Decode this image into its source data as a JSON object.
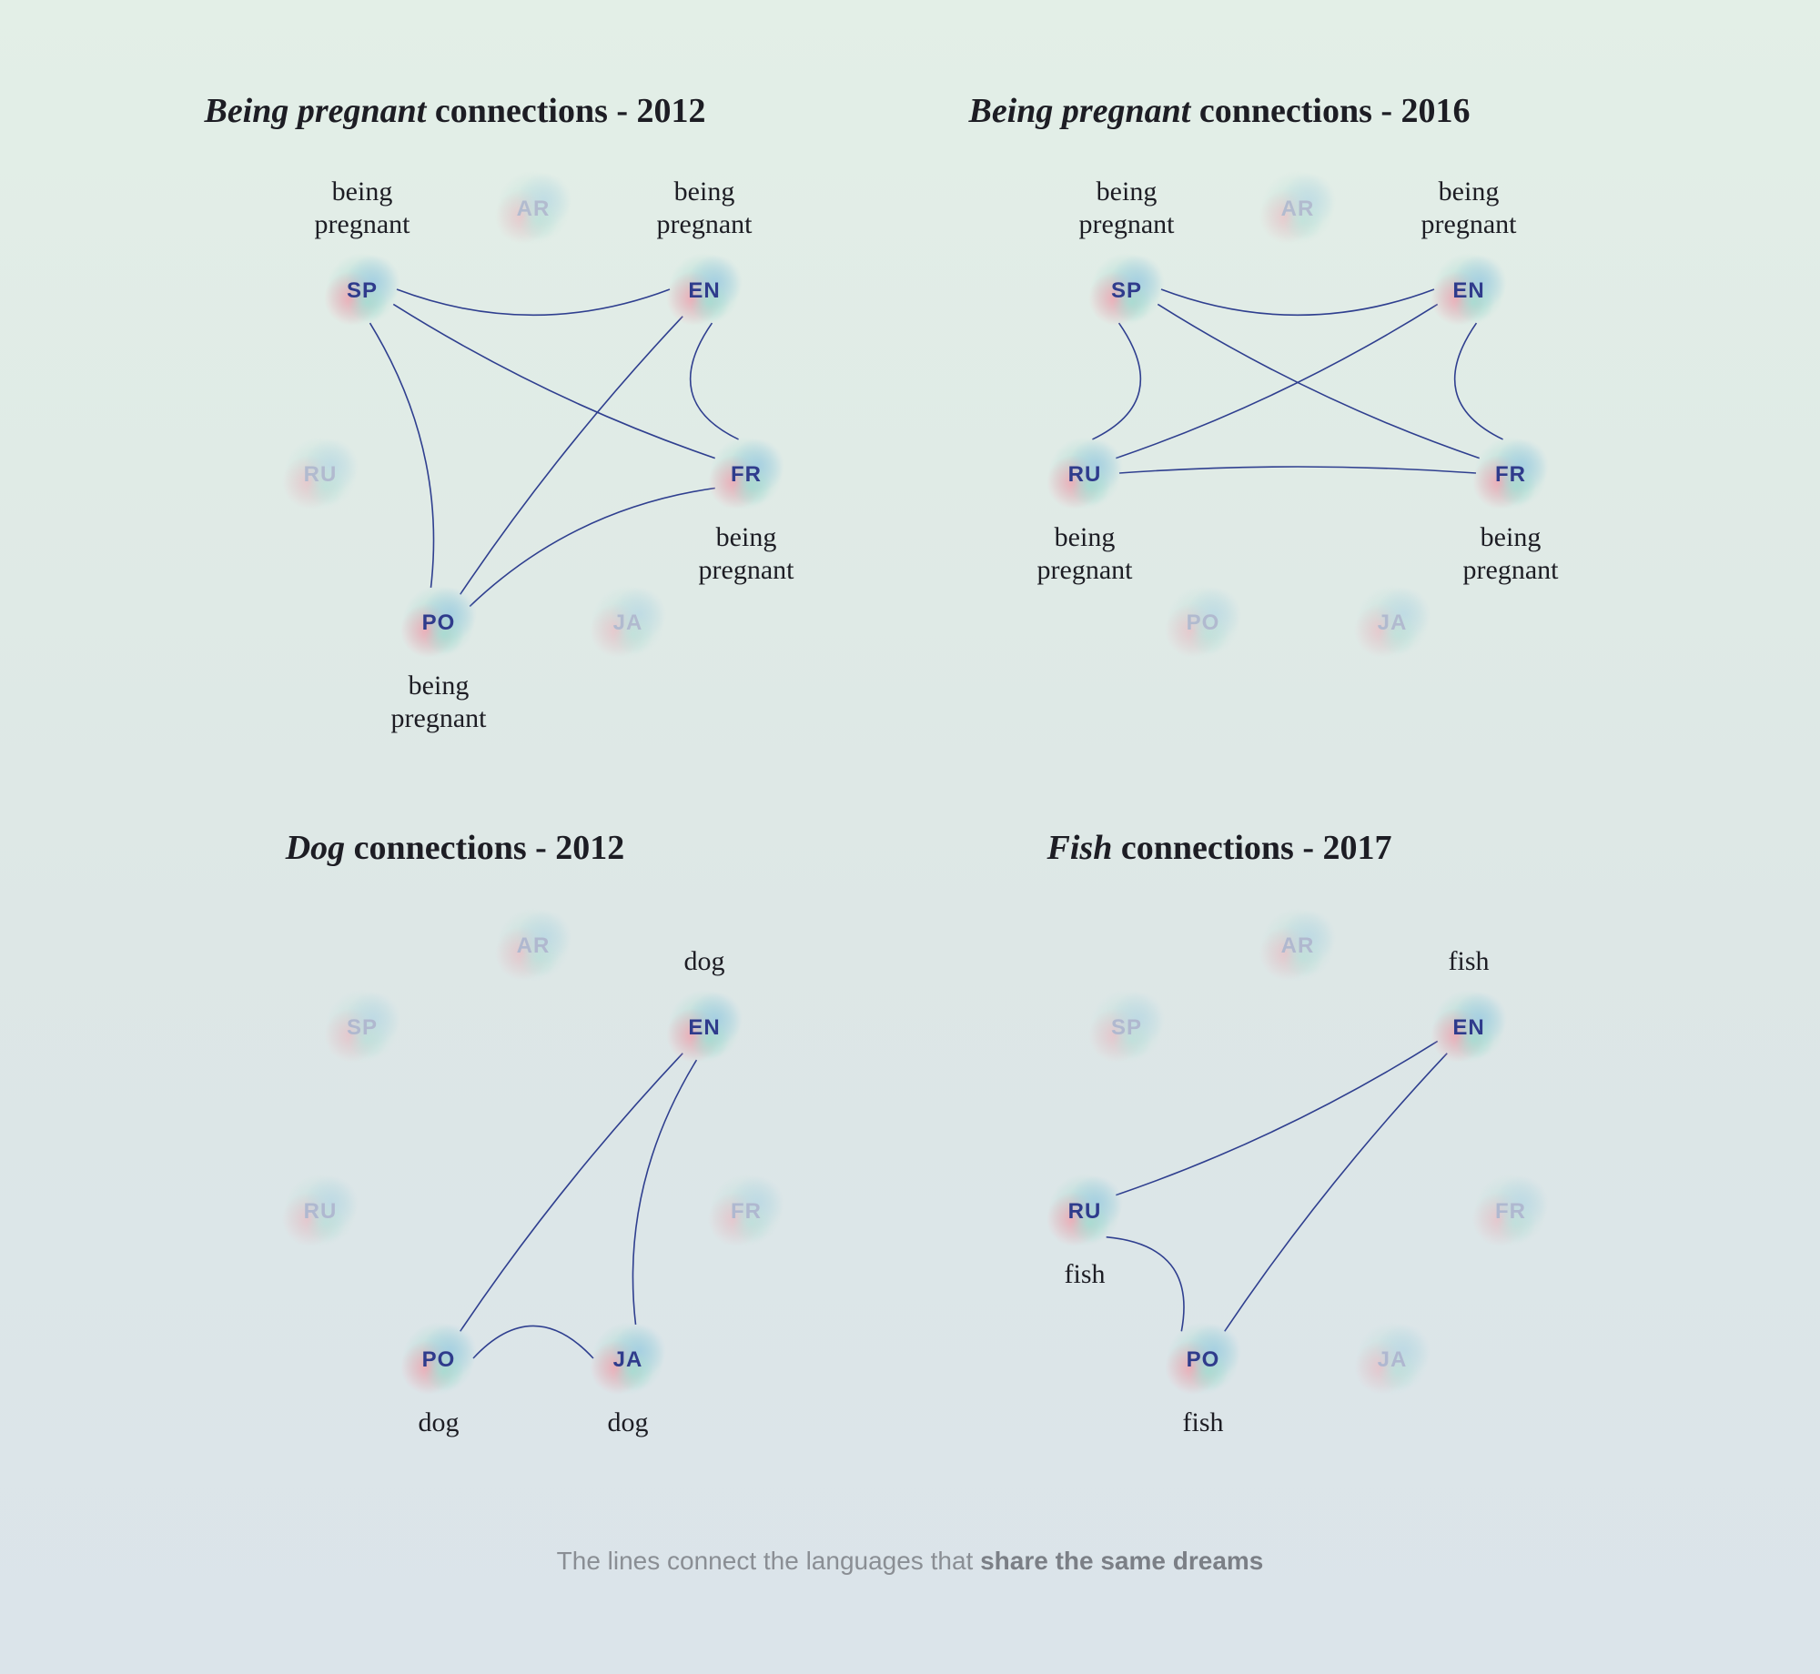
{
  "colors": {
    "edge": "#2f3f8f",
    "label_active": "#2f3b8c",
    "label_inactive": "#8c93bd",
    "blob_red": "#f1a9b5",
    "blob_blue": "#a6cfe2",
    "blob_teal": "#a9dcd2"
  },
  "panels": [
    {
      "title": {
        "em": "Being pregnant",
        "rest": " connections - 2012"
      },
      "nodes": [
        {
          "id": "SP",
          "active": true,
          "text": [
            "being",
            "pregnant"
          ],
          "text_pos": "above"
        },
        {
          "id": "AR",
          "active": false
        },
        {
          "id": "EN",
          "active": true,
          "text": [
            "being",
            "pregnant"
          ],
          "text_pos": "above"
        },
        {
          "id": "RU",
          "active": false
        },
        {
          "id": "FR",
          "active": true,
          "text": [
            "being",
            "pregnant"
          ],
          "text_pos": "below"
        },
        {
          "id": "PO",
          "active": true,
          "text": [
            "being",
            "pregnant"
          ],
          "text_pos": "below"
        },
        {
          "id": "JA",
          "active": false
        }
      ],
      "edges": [
        [
          "SP",
          "EN"
        ],
        [
          "SP",
          "FR"
        ],
        [
          "SP",
          "PO"
        ],
        [
          "EN",
          "FR"
        ],
        [
          "EN",
          "PO"
        ],
        [
          "FR",
          "PO"
        ]
      ]
    },
    {
      "title": {
        "em": "Being pregnant",
        "rest": " connections - 2016"
      },
      "nodes": [
        {
          "id": "SP",
          "active": true,
          "text": [
            "being",
            "pregnant"
          ],
          "text_pos": "above"
        },
        {
          "id": "AR",
          "active": false
        },
        {
          "id": "EN",
          "active": true,
          "text": [
            "being",
            "pregnant"
          ],
          "text_pos": "above"
        },
        {
          "id": "RU",
          "active": true,
          "text": [
            "being",
            "pregnant"
          ],
          "text_pos": "below"
        },
        {
          "id": "FR",
          "active": true,
          "text": [
            "being",
            "pregnant"
          ],
          "text_pos": "below"
        },
        {
          "id": "PO",
          "active": false
        },
        {
          "id": "JA",
          "active": false
        }
      ],
      "edges": [
        [
          "SP",
          "EN"
        ],
        [
          "SP",
          "FR"
        ],
        [
          "SP",
          "RU"
        ],
        [
          "EN",
          "RU"
        ],
        [
          "EN",
          "FR"
        ],
        [
          "RU",
          "FR"
        ]
      ]
    },
    {
      "title": {
        "em": "Dog",
        "rest": " connections - 2012"
      },
      "nodes": [
        {
          "id": "AR",
          "active": false
        },
        {
          "id": "SP",
          "active": false
        },
        {
          "id": "EN",
          "active": true,
          "text": [
            "dog"
          ],
          "text_pos": "above"
        },
        {
          "id": "RU",
          "active": false
        },
        {
          "id": "FR",
          "active": false
        },
        {
          "id": "PO",
          "active": true,
          "text": [
            "dog"
          ],
          "text_pos": "below"
        },
        {
          "id": "JA",
          "active": true,
          "text": [
            "dog"
          ],
          "text_pos": "below"
        }
      ],
      "edges": [
        [
          "EN",
          "PO"
        ],
        [
          "EN",
          "JA"
        ],
        [
          "PO",
          "JA"
        ]
      ]
    },
    {
      "title": {
        "em": "Fish",
        "rest": " connections - 2017"
      },
      "nodes": [
        {
          "id": "AR",
          "active": false
        },
        {
          "id": "SP",
          "active": false
        },
        {
          "id": "EN",
          "active": true,
          "text": [
            "fish"
          ],
          "text_pos": "above"
        },
        {
          "id": "RU",
          "active": true,
          "text": [
            "fish"
          ],
          "text_pos": "below"
        },
        {
          "id": "FR",
          "active": false
        },
        {
          "id": "PO",
          "active": true,
          "text": [
            "fish"
          ],
          "text_pos": "below"
        },
        {
          "id": "JA",
          "active": false
        }
      ],
      "edges": [
        [
          "EN",
          "RU"
        ],
        [
          "EN",
          "PO"
        ],
        [
          "RU",
          "PO"
        ]
      ]
    }
  ],
  "footer": {
    "normal": "The lines connect the languages that ",
    "bold": "share the same dreams"
  }
}
